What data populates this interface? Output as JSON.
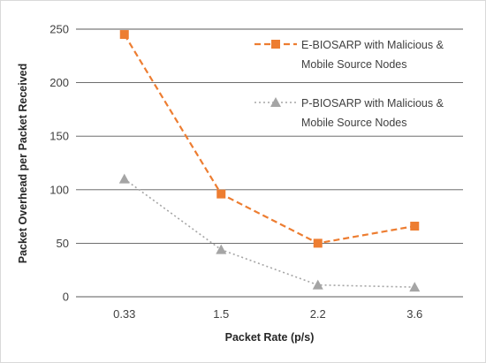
{
  "chart_data": {
    "type": "line",
    "categories": [
      "0.33",
      "1.5",
      "2.2",
      "3.6"
    ],
    "xlabel": "Packet Rate (p/s)",
    "ylabel": "Packet Overhead per Packet Received",
    "ylim": [
      0,
      250
    ],
    "yticks": [
      0,
      50,
      100,
      150,
      200,
      250
    ],
    "yticklabels": [
      "0",
      "50",
      "100",
      "150",
      "200",
      "250"
    ],
    "grid": "horizontal",
    "legend_position": "top-right",
    "series": [
      {
        "name_lines": [
          "E-BIOSARP with Malicious &",
          "Mobile Source Nodes"
        ],
        "values": [
          245,
          96,
          50,
          66
        ],
        "color": "#ED7D31",
        "line_style": "dashed",
        "marker": "square"
      },
      {
        "name_lines": [
          "P-BIOSARP with Malicious &",
          "Mobile Source Nodes"
        ],
        "values": [
          110,
          44,
          11,
          9
        ],
        "color": "#A5A5A5",
        "line_style": "dotted",
        "marker": "triangle"
      }
    ]
  }
}
